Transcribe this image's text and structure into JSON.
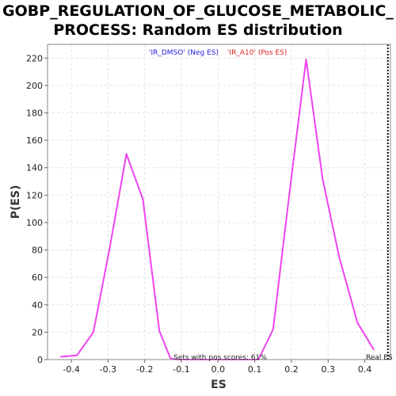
{
  "chart_data": {
    "type": "line",
    "title_line1": "GOBP_REGULATION_OF_GLUCOSE_METABOLIC_",
    "title_line2": "PROCESS: Random ES distribution",
    "xlabel": "ES",
    "ylabel": "P(ES)",
    "xlim": [
      -0.465,
      0.47
    ],
    "ylim": [
      0,
      230
    ],
    "x_ticks": [
      -0.4,
      -0.3,
      -0.2,
      -0.1,
      0.0,
      0.1,
      0.2,
      0.3,
      0.4
    ],
    "x_tick_labels": [
      "-0.4",
      "-0.3",
      "-0.2",
      "-0.1",
      "0.0",
      "0.1",
      "0.2",
      "0.3",
      "0.4"
    ],
    "y_ticks": [
      0,
      20,
      40,
      60,
      80,
      100,
      120,
      140,
      160,
      180,
      200,
      220
    ],
    "y_tick_labels": [
      "0",
      "20",
      "40",
      "60",
      "80",
      "100",
      "120",
      "140",
      "160",
      "180",
      "200",
      "220"
    ],
    "grid": true,
    "legend_position": "top-center",
    "legend": [
      {
        "label": "'IR_DMSO' (Neg ES)",
        "color": "#2222dd"
      },
      {
        "label": "'IR_A10' (Pos ES)",
        "color": "#dd2222"
      }
    ],
    "series": [
      {
        "color": "#ee44ee",
        "x": [
          -0.43,
          -0.385,
          -0.34,
          -0.295,
          -0.25,
          -0.205,
          -0.16,
          -0.13,
          -0.11,
          0.11,
          0.15,
          0.195,
          0.24,
          0.285,
          0.33,
          0.38,
          0.425
        ],
        "y": [
          2,
          3,
          20,
          82,
          150,
          117,
          21,
          1,
          0,
          0,
          22,
          122,
          219,
          132,
          75,
          27,
          7
        ]
      }
    ],
    "annotations": {
      "pos_scores": "Sets with pos scores: 61%",
      "real_es": "Real ES"
    },
    "real_es_x": 0.463
  }
}
